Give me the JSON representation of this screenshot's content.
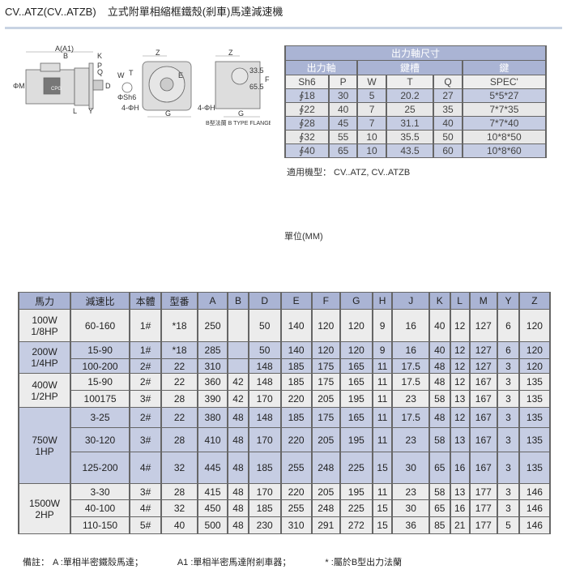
{
  "header": {
    "model": "CV..ATZ(CV..ATZB)",
    "title": "立式附單相縮框鐵殼(剎車)馬達減速機"
  },
  "diagram": {
    "labels": {
      "a": "A(A1)",
      "b": "B",
      "k": "K",
      "p": "P",
      "q": "Q",
      "m": "ΦM",
      "d": "D",
      "l": "L",
      "y": "Y",
      "w": "W",
      "t": "T",
      "sh6": "ΦSh6",
      "z": "Z",
      "e": "E",
      "h": "4-ΦH",
      "g": "G",
      "f": "F",
      "f1": "33.5",
      "f2": "65.5",
      "flange": "B型法蘭 B TYPE FLANGE",
      "logo": "CPG"
    }
  },
  "shaft_table": {
    "title": "出力軸尺寸",
    "groups": [
      "出力軸",
      "鍵槽",
      "鍵"
    ],
    "columns": [
      "Sh6",
      "P",
      "W",
      "T",
      "Q",
      "SPEC'"
    ],
    "rows": [
      [
        "∮18",
        "30",
        "5",
        "20.2",
        "27",
        "5*5*27"
      ],
      [
        "∮22",
        "40",
        "7",
        "25",
        "35",
        "7*7*35"
      ],
      [
        "∮28",
        "45",
        "7",
        "31.1",
        "40",
        "7*7*40"
      ],
      [
        "∮32",
        "55",
        "10",
        "35.5",
        "50",
        "10*8*50"
      ],
      [
        "∮40",
        "65",
        "10",
        "43.5",
        "60",
        "10*8*60"
      ]
    ]
  },
  "applicable": "適用機型： CV..ATZ, CV..ATZB",
  "unit": "單位(MM)",
  "main_table": {
    "columns": [
      "馬力",
      "減速比",
      "本體",
      "型番",
      "A",
      "B",
      "D",
      "E",
      "F",
      "G",
      "H",
      "J",
      "K",
      "L",
      "M",
      "Y",
      "Z"
    ],
    "groups": [
      {
        "power": [
          "100W",
          "1/8HP"
        ],
        "rows": [
          [
            "60-160",
            "1#",
            "*18",
            "250",
            "",
            "50",
            "140",
            "120",
            "120",
            "9",
            "16",
            "40",
            "12",
            "127",
            "6",
            "120"
          ]
        ]
      },
      {
        "power": [
          "200W",
          "1/4HP"
        ],
        "rows": [
          [
            "15-90",
            "1#",
            "*18",
            "285",
            "",
            "50",
            "140",
            "120",
            "120",
            "9",
            "16",
            "40",
            "12",
            "127",
            "6",
            "120"
          ],
          [
            "100-200",
            "2#",
            "22",
            "310",
            "",
            "148",
            "185",
            "175",
            "165",
            "11",
            "17.5",
            "48",
            "12",
            "127",
            "3",
            "120"
          ]
        ]
      },
      {
        "power": [
          "400W",
          "1/2HP"
        ],
        "rows": [
          [
            "15-90",
            "2#",
            "22",
            "360",
            "42",
            "148",
            "185",
            "175",
            "165",
            "11",
            "17.5",
            "48",
            "12",
            "167",
            "3",
            "135"
          ],
          [
            "100175",
            "3#",
            "28",
            "390",
            "42",
            "170",
            "220",
            "205",
            "195",
            "11",
            "23",
            "58",
            "13",
            "167",
            "3",
            "135"
          ]
        ]
      },
      {
        "power": [
          "750W",
          "1HP"
        ],
        "rows": [
          [
            "3-25",
            "2#",
            "22",
            "380",
            "48",
            "148",
            "185",
            "175",
            "165",
            "11",
            "17.5",
            "48",
            "12",
            "167",
            "3",
            "135"
          ],
          [
            "30-120",
            "3#",
            "28",
            "410",
            "48",
            "170",
            "220",
            "205",
            "195",
            "11",
            "23",
            "58",
            "13",
            "167",
            "3",
            "135"
          ],
          [
            "125-200",
            "4#",
            "32",
            "445",
            "48",
            "185",
            "255",
            "248",
            "225",
            "15",
            "30",
            "65",
            "16",
            "167",
            "3",
            "135"
          ]
        ]
      },
      {
        "power": [
          "1500W",
          "2HP"
        ],
        "rows": [
          [
            "3-30",
            "3#",
            "28",
            "415",
            "48",
            "170",
            "220",
            "205",
            "195",
            "11",
            "23",
            "58",
            "13",
            "177",
            "3",
            "146"
          ],
          [
            "40-100",
            "4#",
            "32",
            "450",
            "48",
            "185",
            "255",
            "248",
            "225",
            "15",
            "30",
            "65",
            "16",
            "177",
            "3",
            "146"
          ],
          [
            "110-150",
            "5#",
            "40",
            "500",
            "48",
            "230",
            "310",
            "291",
            "272",
            "15",
            "36",
            "85",
            "21",
            "177",
            "5",
            "146"
          ]
        ]
      }
    ]
  },
  "notes": {
    "label": "備註：",
    "a": "A :單相半密鐵殼馬達；",
    "a1": "A1 :單相半密馬達附剎車器；",
    "star": "* :屬於B型出力法蘭"
  },
  "colors": {
    "header": "#aab4d4",
    "band_blue": "#c6cde3",
    "band_gray": "#ececec",
    "rule": "#c8d3e3"
  }
}
